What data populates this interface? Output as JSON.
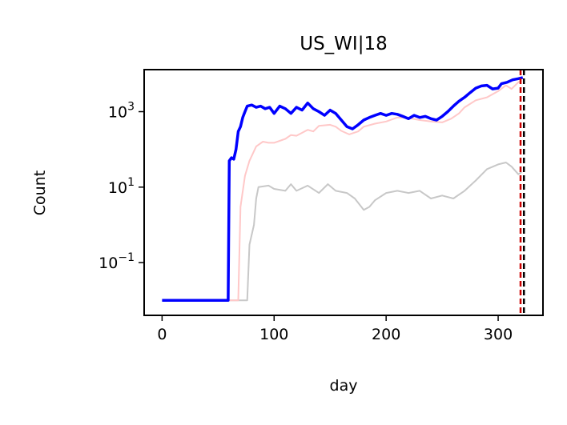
{
  "chart_data": {
    "type": "line",
    "title": "US_WI|18",
    "xlabel": "day",
    "ylabel": "Count",
    "yscale": "log",
    "xlim": [
      -16,
      340
    ],
    "ylim": [
      0.004,
      13000
    ],
    "x_ticks": [
      0,
      100,
      200,
      300
    ],
    "x_tick_labels": [
      "0",
      "100",
      "200",
      "300"
    ],
    "y_ticks": [
      0.1,
      10,
      1000
    ],
    "y_tick_labels": [
      {
        "base": "10",
        "exp": "−1"
      },
      {
        "base": "10",
        "exp": "1"
      },
      {
        "base": "10",
        "exp": "3"
      }
    ],
    "grid": false,
    "legend": "none",
    "vertical_lines": [
      {
        "x": 320,
        "color": "#cc0000",
        "style": "dashed"
      },
      {
        "x": 323,
        "color": "#000000",
        "style": "dashed"
      }
    ],
    "series": [
      {
        "color": "#c8c8c8",
        "points": [
          [
            0,
            0.01
          ],
          [
            76,
            0.01
          ],
          [
            78,
            0.3
          ],
          [
            82,
            1
          ],
          [
            84,
            5
          ],
          [
            86,
            10
          ],
          [
            95,
            11
          ],
          [
            100,
            9
          ],
          [
            110,
            8
          ],
          [
            115,
            12
          ],
          [
            120,
            8
          ],
          [
            130,
            11
          ],
          [
            140,
            7
          ],
          [
            148,
            12
          ],
          [
            155,
            8
          ],
          [
            165,
            7
          ],
          [
            172,
            5
          ],
          [
            180,
            2.5
          ],
          [
            185,
            3
          ],
          [
            190,
            4.5
          ],
          [
            200,
            7
          ],
          [
            210,
            8
          ],
          [
            220,
            7
          ],
          [
            230,
            8
          ],
          [
            240,
            5
          ],
          [
            250,
            6
          ],
          [
            260,
            5
          ],
          [
            270,
            8
          ],
          [
            280,
            15
          ],
          [
            290,
            30
          ],
          [
            300,
            40
          ],
          [
            307,
            45
          ],
          [
            312,
            35
          ],
          [
            318,
            22
          ],
          [
            321,
            25
          ]
        ]
      },
      {
        "color": "#ffc8c8",
        "points": [
          [
            0,
            0.01
          ],
          [
            68,
            0.01
          ],
          [
            70,
            3
          ],
          [
            74,
            20
          ],
          [
            78,
            50
          ],
          [
            84,
            120
          ],
          [
            90,
            160
          ],
          [
            95,
            150
          ],
          [
            100,
            150
          ],
          [
            110,
            190
          ],
          [
            115,
            240
          ],
          [
            120,
            230
          ],
          [
            130,
            330
          ],
          [
            135,
            300
          ],
          [
            140,
            420
          ],
          [
            150,
            450
          ],
          [
            155,
            400
          ],
          [
            160,
            310
          ],
          [
            167,
            250
          ],
          [
            175,
            300
          ],
          [
            180,
            400
          ],
          [
            190,
            480
          ],
          [
            200,
            550
          ],
          [
            210,
            700
          ],
          [
            220,
            680
          ],
          [
            230,
            600
          ],
          [
            240,
            550
          ],
          [
            250,
            520
          ],
          [
            258,
            650
          ],
          [
            265,
            900
          ],
          [
            270,
            1300
          ],
          [
            280,
            2000
          ],
          [
            290,
            2400
          ],
          [
            300,
            3500
          ],
          [
            307,
            5000
          ],
          [
            312,
            4000
          ],
          [
            318,
            6000
          ],
          [
            321,
            6500
          ]
        ]
      },
      {
        "color": "#0000ff",
        "points": [
          [
            0,
            0.01
          ],
          [
            59,
            0.01
          ],
          [
            60,
            50
          ],
          [
            62,
            60
          ],
          [
            64,
            55
          ],
          [
            66,
            100
          ],
          [
            68,
            300
          ],
          [
            70,
            400
          ],
          [
            72,
            700
          ],
          [
            74,
            1000
          ],
          [
            76,
            1400
          ],
          [
            80,
            1500
          ],
          [
            84,
            1300
          ],
          [
            88,
            1400
          ],
          [
            92,
            1200
          ],
          [
            96,
            1300
          ],
          [
            100,
            900
          ],
          [
            105,
            1400
          ],
          [
            110,
            1200
          ],
          [
            115,
            900
          ],
          [
            120,
            1300
          ],
          [
            125,
            1100
          ],
          [
            130,
            1700
          ],
          [
            135,
            1200
          ],
          [
            140,
            1000
          ],
          [
            145,
            800
          ],
          [
            150,
            1100
          ],
          [
            155,
            900
          ],
          [
            160,
            600
          ],
          [
            165,
            400
          ],
          [
            170,
            350
          ],
          [
            175,
            450
          ],
          [
            180,
            600
          ],
          [
            185,
            700
          ],
          [
            190,
            800
          ],
          [
            195,
            900
          ],
          [
            200,
            800
          ],
          [
            205,
            900
          ],
          [
            210,
            850
          ],
          [
            215,
            750
          ],
          [
            220,
            650
          ],
          [
            225,
            800
          ],
          [
            230,
            700
          ],
          [
            235,
            750
          ],
          [
            240,
            650
          ],
          [
            245,
            600
          ],
          [
            250,
            750
          ],
          [
            255,
            1000
          ],
          [
            260,
            1400
          ],
          [
            265,
            1900
          ],
          [
            270,
            2400
          ],
          [
            275,
            3200
          ],
          [
            280,
            4200
          ],
          [
            285,
            4800
          ],
          [
            290,
            5000
          ],
          [
            295,
            4000
          ],
          [
            300,
            4200
          ],
          [
            303,
            5500
          ],
          [
            308,
            6000
          ],
          [
            313,
            7000
          ],
          [
            318,
            7500
          ],
          [
            322,
            8000
          ]
        ]
      }
    ]
  }
}
